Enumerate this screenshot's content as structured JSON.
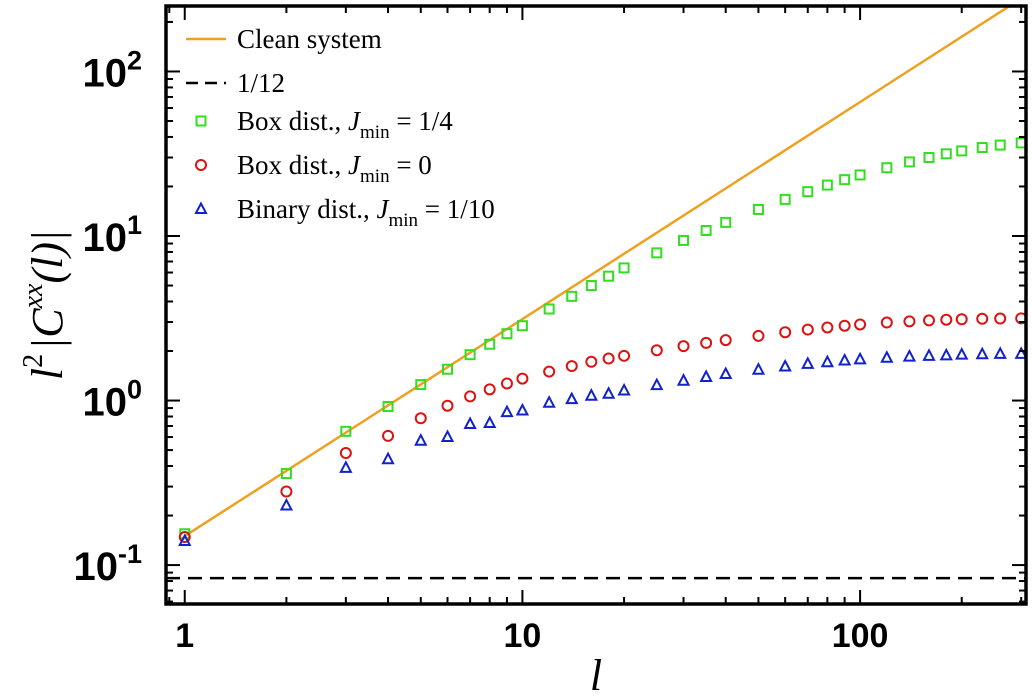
{
  "chart_data": {
    "type": "scatter",
    "title": "",
    "xlabel": "l",
    "ylabel_parts": {
      "l": "l",
      "sup2": "2",
      "open": "|C",
      "supxx": "xx",
      "close": "(l)|"
    },
    "xscale": "log",
    "yscale": "log",
    "xlim": [
      0.88,
      310
    ],
    "ylim": [
      0.058,
      250
    ],
    "x_ticks": [
      {
        "value": 1,
        "label": "1"
      },
      {
        "value": 10,
        "label": "10"
      },
      {
        "value": 100,
        "label": "100"
      }
    ],
    "y_ticks": [
      {
        "value": 0.1,
        "base": "10",
        "exp": "-1"
      },
      {
        "value": 1,
        "base": "10",
        "exp": "0"
      },
      {
        "value": 10,
        "base": "10",
        "exp": "1"
      },
      {
        "value": 100,
        "base": "10",
        "exp": "2"
      }
    ],
    "legend_position": "top-left",
    "series": [
      {
        "name": "Clean system",
        "kind": "line",
        "color": "#f0a020",
        "dash": "",
        "x": [
          1,
          310
        ],
        "y": [
          0.15,
          290
        ]
      },
      {
        "name": "1/12",
        "kind": "line",
        "color": "#000000",
        "dash": "14,8",
        "x": [
          0.88,
          310
        ],
        "y": [
          0.0833,
          0.0833
        ]
      },
      {
        "name_parts": {
          "prefix": "Box dist., ",
          "J": "J",
          "sub": "min",
          "suffix": " = 1/4"
        },
        "kind": "marker",
        "marker": "square",
        "color": "#33dd22",
        "x": [
          1,
          2,
          3,
          4,
          5,
          6,
          7,
          8,
          9,
          10,
          12,
          14,
          16,
          18,
          20,
          25,
          30,
          35,
          40,
          50,
          60,
          70,
          80,
          90,
          100,
          120,
          140,
          160,
          180,
          200,
          230,
          260,
          300
        ],
        "y": [
          0.155,
          0.36,
          0.65,
          0.92,
          1.25,
          1.55,
          1.9,
          2.2,
          2.55,
          2.85,
          3.6,
          4.3,
          5.0,
          5.7,
          6.4,
          7.9,
          9.4,
          10.8,
          12.1,
          14.5,
          16.7,
          18.6,
          20.4,
          22.0,
          23.5,
          26.0,
          28.2,
          30.0,
          31.6,
          32.9,
          34.5,
          35.7,
          36.8
        ]
      },
      {
        "name_parts": {
          "prefix": "Box dist., ",
          "J": "J",
          "sub": "min",
          "suffix": " = 0"
        },
        "kind": "marker",
        "marker": "circle",
        "color": "#dd1111",
        "x": [
          1,
          2,
          3,
          4,
          5,
          6,
          7,
          8,
          9,
          10,
          12,
          14,
          16,
          18,
          20,
          25,
          30,
          35,
          40,
          50,
          60,
          70,
          80,
          90,
          100,
          120,
          140,
          160,
          180,
          200,
          230,
          260,
          300
        ],
        "y": [
          0.148,
          0.28,
          0.48,
          0.61,
          0.78,
          0.93,
          1.06,
          1.17,
          1.27,
          1.36,
          1.5,
          1.62,
          1.72,
          1.8,
          1.87,
          2.02,
          2.14,
          2.24,
          2.33,
          2.47,
          2.6,
          2.7,
          2.78,
          2.85,
          2.9,
          2.98,
          3.03,
          3.07,
          3.1,
          3.12,
          3.14,
          3.15,
          3.16
        ]
      },
      {
        "name_parts": {
          "prefix": "Binary dist., ",
          "J": "J",
          "sub": "min",
          "suffix": " = 1/10"
        },
        "kind": "marker",
        "marker": "triangle",
        "color": "#1122cc",
        "x": [
          1,
          2,
          3,
          4,
          5,
          6,
          7,
          8,
          9,
          10,
          12,
          14,
          16,
          18,
          20,
          25,
          30,
          35,
          40,
          50,
          60,
          70,
          80,
          90,
          100,
          120,
          140,
          160,
          180,
          200,
          230,
          260,
          300
        ],
        "y": [
          0.14,
          0.23,
          0.39,
          0.44,
          0.57,
          0.6,
          0.72,
          0.73,
          0.85,
          0.87,
          0.97,
          1.02,
          1.07,
          1.1,
          1.15,
          1.24,
          1.32,
          1.39,
          1.45,
          1.54,
          1.61,
          1.67,
          1.71,
          1.75,
          1.78,
          1.82,
          1.85,
          1.87,
          1.88,
          1.9,
          1.91,
          1.92,
          1.92
        ]
      }
    ]
  }
}
